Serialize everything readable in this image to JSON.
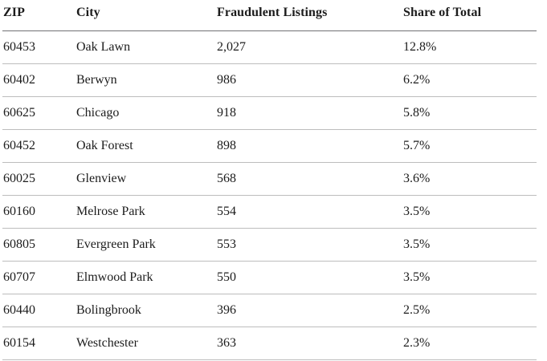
{
  "table": {
    "columns": [
      "ZIP",
      "City",
      "Fraudulent Listings",
      "Share of Total"
    ],
    "rows": [
      {
        "zip": "60453",
        "city": "Oak Lawn",
        "listings": "2,027",
        "share": "12.8%"
      },
      {
        "zip": "60402",
        "city": "Berwyn",
        "listings": "986",
        "share": "6.2%"
      },
      {
        "zip": "60625",
        "city": "Chicago",
        "listings": "918",
        "share": "5.8%"
      },
      {
        "zip": "60452",
        "city": "Oak Forest",
        "listings": "898",
        "share": "5.7%"
      },
      {
        "zip": "60025",
        "city": "Glenview",
        "listings": "568",
        "share": "3.6%"
      },
      {
        "zip": "60160",
        "city": "Melrose Park",
        "listings": "554",
        "share": "3.5%"
      },
      {
        "zip": "60805",
        "city": "Evergreen Park",
        "listings": "553",
        "share": "3.5%"
      },
      {
        "zip": "60707",
        "city": "Elmwood Park",
        "listings": "550",
        "share": "3.5%"
      },
      {
        "zip": "60440",
        "city": "Bolingbrook",
        "listings": "396",
        "share": "2.5%"
      },
      {
        "zip": "60154",
        "city": "Westchester",
        "listings": "363",
        "share": "2.3%"
      }
    ]
  },
  "colors": {
    "background": "#ffffff",
    "text": "#1c1c1c",
    "header_rule": "#717174",
    "row_rule": "#bdbdbd"
  },
  "chart_data": {
    "type": "table",
    "title": "",
    "columns": [
      "ZIP",
      "City",
      "Fraudulent Listings",
      "Share of Total"
    ],
    "rows": [
      [
        "60453",
        "Oak Lawn",
        2027,
        "12.8%"
      ],
      [
        "60402",
        "Berwyn",
        986,
        "6.2%"
      ],
      [
        "60625",
        "Chicago",
        918,
        "5.8%"
      ],
      [
        "60452",
        "Oak Forest",
        898,
        "5.7%"
      ],
      [
        "60025",
        "Glenview",
        568,
        "3.6%"
      ],
      [
        "60160",
        "Melrose Park",
        554,
        "3.5%"
      ],
      [
        "60805",
        "Evergreen Park",
        553,
        "3.5%"
      ],
      [
        "60707",
        "Elmwood Park",
        550,
        "3.5%"
      ],
      [
        "60440",
        "Bolingbrook",
        396,
        "2.5%"
      ],
      [
        "60154",
        "Westchester",
        363,
        "2.3%"
      ]
    ]
  }
}
